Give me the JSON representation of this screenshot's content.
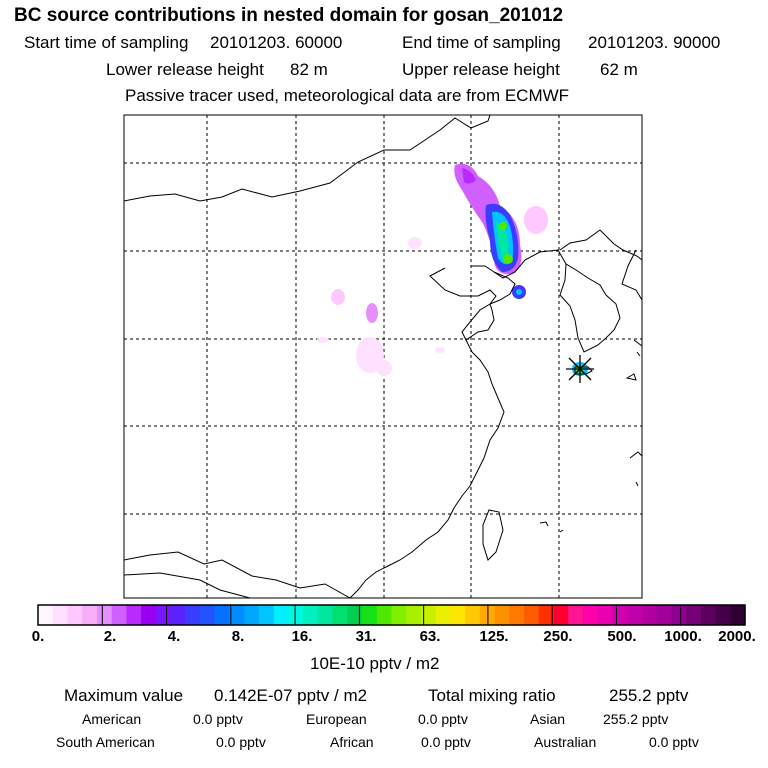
{
  "header": {
    "title": "BC  source contributions in nested domain for gosan_201012",
    "start_label": "Start time of sampling",
    "start_value": "20101203. 60000",
    "end_label": "End time of sampling",
    "end_value": "20101203. 90000",
    "lower_label": "Lower release height",
    "lower_value": "82 m",
    "upper_label": "Upper release height",
    "upper_value": "62 m",
    "info": "Passive tracer used, meteorological data are from ECMWF"
  },
  "colorbar": {
    "ticks": [
      "0.",
      "2.",
      "4.",
      "8.",
      "16.",
      "31.",
      "63.",
      "125.",
      "250.",
      "500.",
      "1000.",
      "2000."
    ],
    "unit": "10E-10 pptv / m2",
    "colors": [
      "#fff5ff",
      "#ffe0ff",
      "#ffc8ff",
      "#f7adf7",
      "#e690ff",
      "#d060ff",
      "#b82aff",
      "#9a00f0",
      "#7a14ff",
      "#5a22ff",
      "#3a3cff",
      "#2152ff",
      "#0072ff",
      "#008cff",
      "#00a6ff",
      "#00c4ff",
      "#00f0ff",
      "#00f8e0",
      "#00f0c0",
      "#00e8a0",
      "#00e070",
      "#00d050",
      "#18e018",
      "#50e800",
      "#80f000",
      "#a8f000",
      "#c8f000",
      "#e8f000",
      "#ffe600",
      "#ffc800",
      "#ffaa00",
      "#ff9000",
      "#ff7800",
      "#ff5a00",
      "#ff3000",
      "#ff0030",
      "#ff1493",
      "#ff00aa",
      "#e800b0",
      "#d000b0",
      "#c000a8",
      "#b000a0",
      "#a00098",
      "#900090",
      "#760078",
      "#5c0060",
      "#440048",
      "#300030"
    ]
  },
  "summary": {
    "max_label": "Maximum value",
    "max_value": "0.142E-07 pptv / m2",
    "total_label": "Total mixing ratio",
    "total_value": "255.2 pptv",
    "american_label": "American",
    "american_value": "0.0 pptv",
    "european_label": "European",
    "european_value": "0.0 pptv",
    "asian_label": "Asian",
    "asian_value": "255.2 pptv",
    "south_american_label": "South American",
    "south_american_value": "0.0 pptv",
    "african_label": "African",
    "african_value": "0.0 pptv",
    "australian_label": "Australian",
    "australian_value": "0.0 pptv"
  }
}
